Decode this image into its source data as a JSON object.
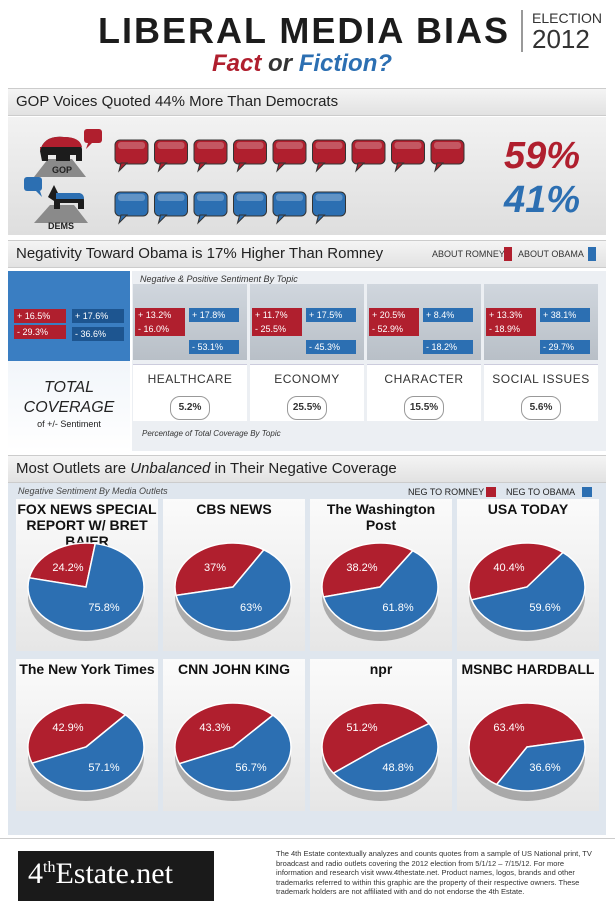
{
  "header": {
    "title": "LIBERAL MEDIA BIAS",
    "subtitle_fact": "Fact",
    "subtitle_or": "or",
    "subtitle_fiction": "Fiction?",
    "election": "ELECTION",
    "year": "2012"
  },
  "section1": {
    "heading": "GOP Voices Quoted 44% More Than Democrats",
    "gop_label": "GOP",
    "dems_label": "DEMS",
    "gop_pct": "59%",
    "dems_pct": "41%",
    "gop_bubbles": 9,
    "dems_bubbles": 6,
    "gop_color": "#b01f2e",
    "dems_color": "#2c6fb2"
  },
  "section2": {
    "heading": "Negativity Toward Obama is 17% Higher Than Romney",
    "legend_romney": "ABOUT ROMNEY",
    "legend_obama": "ABOUT OBAMA",
    "topic_caption": "Negative & Positive Sentiment By Topic",
    "pct_caption": "Percentage of Total Coverage By Topic",
    "total_label_1": "TOTAL",
    "total_label_2": "COVERAGE",
    "total_label_3": "of +/- Sentiment",
    "total": {
      "romney_pos": "+ 16.5%",
      "romney_neg": "- 29.3%",
      "obama_pos": "+ 17.6%",
      "obama_neg": "- 36.6%"
    },
    "topics": [
      {
        "name": "HEALTHCARE",
        "romney_pos": "+ 13.2%",
        "romney_neg": "- 16.0%",
        "obama_pos": "+ 17.8%",
        "obama_neg": "- 53.1%",
        "share": "5.2%"
      },
      {
        "name": "ECONOMY",
        "romney_pos": "+ 11.7%",
        "romney_neg": "- 25.5%",
        "obama_pos": "+ 17.5%",
        "obama_neg": "- 45.3%",
        "share": "25.5%"
      },
      {
        "name": "CHARACTER",
        "romney_pos": "+ 20.5%",
        "romney_neg": "- 52.9%",
        "obama_pos": "+ 8.4%",
        "obama_neg": "- 18.2%",
        "share": "15.5%"
      },
      {
        "name": "SOCIAL ISSUES",
        "romney_pos": "+ 13.3%",
        "romney_neg": "- 18.9%",
        "obama_pos": "+ 38.1%",
        "obama_neg": "- 29.7%",
        "share": "5.6%"
      }
    ]
  },
  "section3": {
    "heading_a": "Most Outlets are ",
    "heading_em": "Unbalanced",
    "heading_b": " in Their Negative Coverage",
    "caption": "Negative Sentiment By Media Outlets",
    "legend_romney": "NEG TO ROMNEY",
    "legend_obama": "NEG TO OBAMA"
  },
  "chart_data": {
    "type": "pie",
    "series_names": [
      "NEG TO ROMNEY",
      "NEG TO OBAMA"
    ],
    "colors": [
      "#b01f2e",
      "#2c6fb2"
    ],
    "outlets": [
      {
        "name": "FOX NEWS SPECIAL REPORT W/ BRET BAIER",
        "romney": 24.2,
        "obama": 75.8,
        "labels": [
          "24.2%",
          "75.8%"
        ]
      },
      {
        "name": "CBS NEWS",
        "romney": 37,
        "obama": 63,
        "labels": [
          "37%",
          "63%"
        ]
      },
      {
        "name": "The Washington Post",
        "romney": 38.2,
        "obama": 61.8,
        "labels": [
          "38.2%",
          "61.8%"
        ]
      },
      {
        "name": "USA TODAY",
        "romney": 40.4,
        "obama": 59.6,
        "labels": [
          "40.4%",
          "59.6%"
        ]
      },
      {
        "name": "The New York Times",
        "romney": 42.9,
        "obama": 57.1,
        "labels": [
          "42.9%",
          "57.1%"
        ]
      },
      {
        "name": "CNN JOHN KING",
        "romney": 43.3,
        "obama": 56.7,
        "labels": [
          "43.3%",
          "56.7%"
        ]
      },
      {
        "name": "npr",
        "romney": 51.2,
        "obama": 48.8,
        "labels": [
          "51.2%",
          "48.8%"
        ]
      },
      {
        "name": "MSNBC HARDBALL",
        "romney": 63.4,
        "obama": 36.6,
        "labels": [
          "63.4%",
          "36.6%"
        ]
      }
    ]
  },
  "footer": {
    "brand_a": "4",
    "brand_sup": "th",
    "brand_b": "Estate.net",
    "text": "The 4th Estate contextually analyzes and counts quotes from a sample of US National print, TV broadcast and radio outlets covering the 2012 election from 5/1/12 – 7/15/12. For more information and research visit www.4thestate.net. Product names, logos, brands and other trademarks referred to within this graphic are the property of their respective owners. These trademark holders are not affiliated with and do not endorse the 4th Estate."
  }
}
